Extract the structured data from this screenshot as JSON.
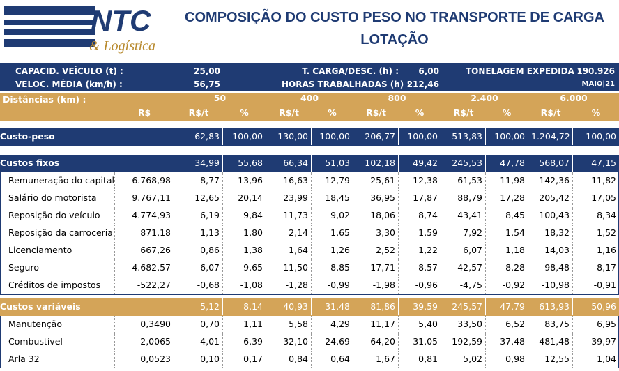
{
  "header": {
    "logo": {
      "name": "NTC",
      "sub": "& Logística"
    },
    "title_lines": [
      "COMPOSIÇÃO DO CUSTO PESO NO TRANSPORTE DE CARGA",
      "LOTAÇÃO"
    ]
  },
  "info": {
    "rows": [
      [
        "CAPACID. VEÍCULO (t) :",
        "25,00",
        "T. CARGA/DESC. (h) :",
        "6,00",
        "TONELAGEM EXPEDIDA :",
        "190.926"
      ],
      [
        "VELOC. MÉDIA (km/h) :",
        "56,75",
        "HORAS TRABALHADAS (h) :",
        "212,46",
        "MAIO|21"
      ]
    ]
  },
  "table": {
    "distance_label": "Distâncias (km) :",
    "distances": [
      "50",
      "400",
      "800",
      "2.400",
      "6.000"
    ],
    "subheader": [
      "R$",
      "R$/t",
      "%",
      "R$/t",
      "%",
      "R$/t",
      "%",
      "R$/t",
      "%",
      "R$/t",
      "%"
    ],
    "rows": [
      {
        "style": "blue",
        "label": "Custo-peso",
        "values": [
          "62,83",
          "100,00",
          "130,00",
          "100,00",
          "206,77",
          "100,00",
          "513,83",
          "100,00",
          "1.204,72",
          "100,00"
        ]
      },
      {
        "style": "blue",
        "label": "Custos fixos",
        "values": [
          "34,99",
          "55,68",
          "66,34",
          "51,03",
          "102,18",
          "49,42",
          "245,53",
          "47,78",
          "568,07",
          "47,15"
        ]
      },
      {
        "style": "item",
        "label": "Remuneração do capital",
        "rs": "6.768,98",
        "values": [
          "8,77",
          "13,96",
          "16,63",
          "12,79",
          "25,61",
          "12,38",
          "61,53",
          "11,98",
          "142,36",
          "11,82"
        ]
      },
      {
        "style": "item",
        "label": "Salário do motorista",
        "rs": "9.767,11",
        "values": [
          "12,65",
          "20,14",
          "23,99",
          "18,45",
          "36,95",
          "17,87",
          "88,79",
          "17,28",
          "205,42",
          "17,05"
        ]
      },
      {
        "style": "item",
        "label": "Reposição do veículo",
        "rs": "4.774,93",
        "values": [
          "6,19",
          "9,84",
          "11,73",
          "9,02",
          "18,06",
          "8,74",
          "43,41",
          "8,45",
          "100,43",
          "8,34"
        ]
      },
      {
        "style": "item",
        "label": "Reposição da carroceria",
        "rs": "871,18",
        "values": [
          "1,13",
          "1,80",
          "2,14",
          "1,65",
          "3,30",
          "1,59",
          "7,92",
          "1,54",
          "18,32",
          "1,52"
        ]
      },
      {
        "style": "item",
        "label": "Licenciamento",
        "rs": "667,26",
        "values": [
          "0,86",
          "1,38",
          "1,64",
          "1,26",
          "2,52",
          "1,22",
          "6,07",
          "1,18",
          "14,03",
          "1,16"
        ]
      },
      {
        "style": "item",
        "label": "Seguro",
        "rs": "4.682,57",
        "values": [
          "6,07",
          "9,65",
          "11,50",
          "8,85",
          "17,71",
          "8,57",
          "42,57",
          "8,28",
          "98,48",
          "8,17"
        ]
      },
      {
        "style": "item",
        "label": "Créditos de impostos",
        "rs": "-522,27",
        "values": [
          "-0,68",
          "-1,08",
          "-1,28",
          "-0,99",
          "-1,98",
          "-0,96",
          "-4,75",
          "-0,92",
          "-10,98",
          "-0,91"
        ]
      },
      {
        "style": "gold",
        "label": "Custos variáveis",
        "values": [
          "5,12",
          "8,14",
          "40,93",
          "31,48",
          "81,86",
          "39,59",
          "245,57",
          "47,79",
          "613,93",
          "50,96"
        ]
      },
      {
        "style": "item",
        "label": "Manutenção",
        "rs": "0,3490",
        "values": [
          "0,70",
          "1,11",
          "5,58",
          "4,29",
          "11,17",
          "5,40",
          "33,50",
          "6,52",
          "83,75",
          "6,95"
        ]
      },
      {
        "style": "item",
        "label": "Combustível",
        "rs": "2,0065",
        "values": [
          "4,01",
          "6,39",
          "32,10",
          "24,69",
          "64,20",
          "31,05",
          "192,59",
          "37,48",
          "481,48",
          "39,97"
        ]
      },
      {
        "style": "item",
        "label": "Arla 32",
        "rs": "0,0523",
        "values": [
          "0,10",
          "0,17",
          "0,84",
          "0,64",
          "1,67",
          "0,81",
          "5,02",
          "0,98",
          "12,55",
          "1,04"
        ]
      }
    ]
  }
}
